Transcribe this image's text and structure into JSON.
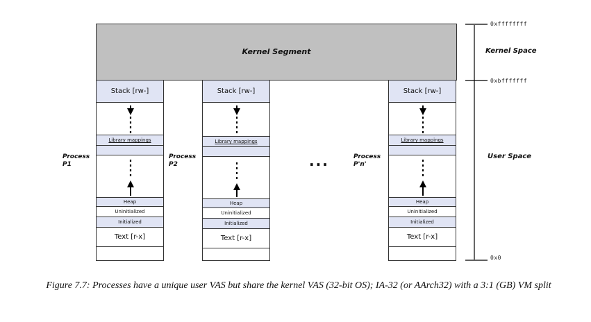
{
  "kernel_segment": "Kernel Segment",
  "process_labels": [
    "Process\nP1",
    "Process\nP2",
    "Process\nP'n'"
  ],
  "segments": {
    "stack": "Stack [rw-]",
    "library": "Library mappings",
    "heap": "Heap",
    "uninitialized": "Uninitialized",
    "initialized": "Initialized",
    "text": "Text [r-x]"
  },
  "ellipsis": "...",
  "addresses": {
    "top": "0xffffffff",
    "split": "0xbfffffff",
    "bottom": "0x0"
  },
  "space_labels": {
    "kernel": "Kernel Space",
    "user": "User Space"
  },
  "caption": "Figure 7.7: Processes have a unique user VAS but share the kernel VAS (32-bit OS); IA-32 (or AArch32) with a 3:1 (GB) VM split",
  "colors": {
    "kernel_fill": "#c0c0c0",
    "segment_tint": "#e0e4f4"
  }
}
